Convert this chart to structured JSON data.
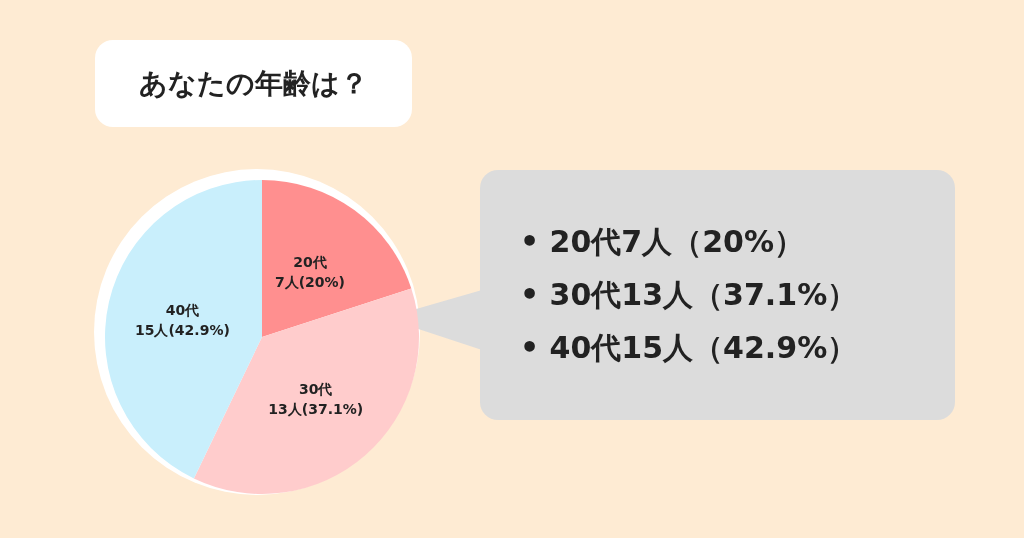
{
  "chart_data": {
    "type": "pie",
    "title": "あなたの年齢は？",
    "categories": [
      "20代",
      "30代",
      "40代"
    ],
    "values": [
      7,
      13,
      15
    ],
    "value_labels": [
      "7人(20%)",
      "13人(37.1%)",
      "15人(42.9%)"
    ],
    "colors": [
      "#ff8f8f",
      "#ffcccc",
      "#c9effc"
    ],
    "annotations": [
      "• 20代7人（20%）",
      "• 30代13人（37.1%）",
      "• 40代15人（42.9%）"
    ]
  }
}
